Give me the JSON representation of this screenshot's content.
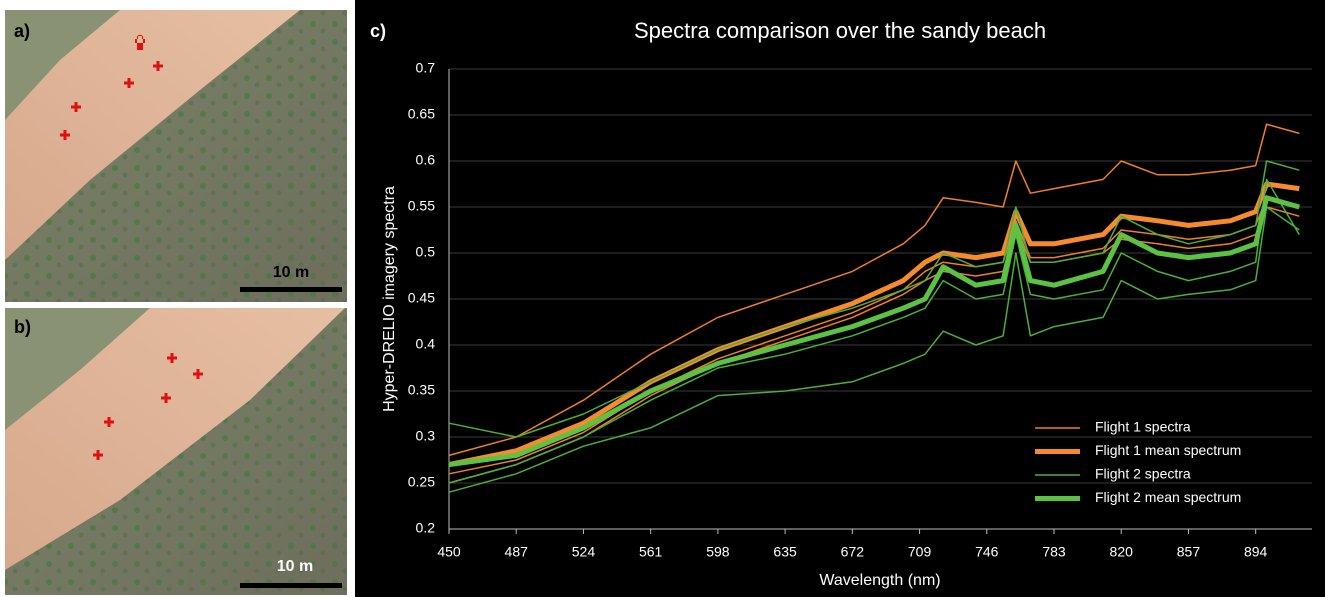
{
  "panels": [
    {
      "label": "a)",
      "scale": "10 m"
    },
    {
      "label": "b)",
      "scale": "10 m"
    }
  ],
  "chart_data": {
    "type": "line",
    "panel_label": "c)",
    "title": "Spectra comparison over the sandy beach",
    "x_label": "Wavelength (nm)",
    "y_label": "Hyper-DRELIO imagery spectra",
    "x": [
      450,
      487,
      524,
      561,
      598,
      635,
      672,
      700,
      712,
      722,
      740,
      755,
      762,
      770,
      783,
      810,
      820,
      840,
      857,
      880,
      894,
      900,
      918
    ],
    "xlim": [
      450,
      925
    ],
    "xticks": [
      450,
      487,
      524,
      561,
      598,
      635,
      672,
      709,
      746,
      783,
      820,
      857,
      894
    ],
    "ylim": [
      0.2,
      0.7
    ],
    "yticks": [
      0.2,
      0.25,
      0.3,
      0.35,
      0.4,
      0.45,
      0.5,
      0.55,
      0.6,
      0.65,
      0.7
    ],
    "grid": true,
    "legend": "lower right",
    "series": [
      {
        "name": "Flight 1 spectra",
        "color": "#f07f2a",
        "line_width": 1.5,
        "values": [
          [
            0.28,
            0.3,
            0.34,
            0.39,
            0.43,
            0.455,
            0.48,
            0.51,
            0.53,
            0.56,
            0.555,
            0.55,
            0.6,
            0.565,
            0.57,
            0.58,
            0.6,
            0.585,
            0.585,
            0.59,
            0.595,
            0.64,
            0.63
          ],
          [
            0.26,
            0.275,
            0.305,
            0.35,
            0.385,
            0.41,
            0.435,
            0.46,
            0.48,
            0.49,
            0.485,
            0.49,
            0.535,
            0.495,
            0.495,
            0.505,
            0.525,
            0.52,
            0.515,
            0.52,
            0.53,
            0.56,
            0.55
          ],
          [
            0.25,
            0.27,
            0.3,
            0.345,
            0.38,
            0.405,
            0.43,
            0.455,
            0.47,
            0.48,
            0.475,
            0.48,
            0.53,
            0.49,
            0.49,
            0.5,
            0.515,
            0.51,
            0.505,
            0.51,
            0.52,
            0.55,
            0.54
          ]
        ]
      },
      {
        "name": "Flight 1 mean spectrum",
        "color": "#f58a2e",
        "line_width": 5,
        "values": [
          0.27,
          0.285,
          0.315,
          0.36,
          0.395,
          0.42,
          0.445,
          0.47,
          0.49,
          0.5,
          0.495,
          0.5,
          0.545,
          0.51,
          0.51,
          0.52,
          0.54,
          0.535,
          0.53,
          0.535,
          0.545,
          0.575,
          0.57
        ]
      },
      {
        "name": "Flight 2 spectra",
        "color": "#4caf3a",
        "line_width": 1.5,
        "values": [
          [
            0.315,
            0.3,
            0.325,
            0.36,
            0.395,
            0.42,
            0.44,
            0.46,
            0.47,
            0.5,
            0.485,
            0.49,
            0.55,
            0.49,
            0.49,
            0.5,
            0.54,
            0.52,
            0.51,
            0.52,
            0.53,
            0.6,
            0.59
          ],
          [
            0.25,
            0.27,
            0.3,
            0.34,
            0.375,
            0.39,
            0.41,
            0.43,
            0.44,
            0.47,
            0.45,
            0.455,
            0.52,
            0.455,
            0.45,
            0.46,
            0.5,
            0.48,
            0.47,
            0.48,
            0.49,
            0.58,
            0.52
          ],
          [
            0.24,
            0.26,
            0.29,
            0.31,
            0.345,
            0.35,
            0.36,
            0.38,
            0.39,
            0.415,
            0.4,
            0.41,
            0.5,
            0.41,
            0.42,
            0.43,
            0.47,
            0.45,
            0.455,
            0.46,
            0.47,
            0.55,
            0.525
          ]
        ]
      },
      {
        "name": "Flight 2 mean spectrum",
        "color": "#5cc244",
        "line_width": 5,
        "values": [
          0.27,
          0.28,
          0.31,
          0.35,
          0.38,
          0.4,
          0.42,
          0.44,
          0.45,
          0.485,
          0.465,
          0.47,
          0.53,
          0.47,
          0.465,
          0.48,
          0.52,
          0.5,
          0.495,
          0.5,
          0.51,
          0.56,
          0.55
        ]
      }
    ]
  }
}
